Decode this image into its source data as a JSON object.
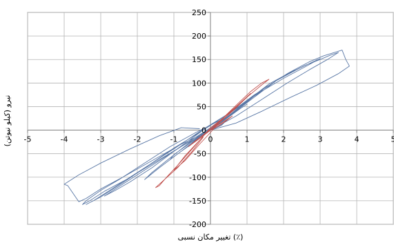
{
  "chart_data": {
    "type": "line",
    "title": "",
    "xlabel": "تغییر مکان نسبی (٪)",
    "ylabel": "نیرو (کیلو نیوتن)",
    "xlim": [
      -5,
      5
    ],
    "ylim": [
      -200,
      250
    ],
    "x_ticks": [
      -5,
      -4,
      -3,
      -2,
      -1,
      0,
      1,
      2,
      3,
      4,
      5
    ],
    "y_ticks": [
      -200,
      -150,
      -100,
      -50,
      0,
      50,
      100,
      150,
      200,
      250
    ],
    "grid": true,
    "series": [
      {
        "color": "#5a78a6",
        "points": [
          [
            0,
            0
          ],
          [
            0.3,
            10
          ],
          [
            0.5,
            25
          ],
          [
            0.3,
            12
          ],
          [
            0,
            0
          ],
          [
            -0.3,
            -14
          ],
          [
            -0.5,
            -28
          ],
          [
            -0.3,
            -15
          ],
          [
            0,
            0
          ],
          [
            0.4,
            22
          ],
          [
            0.8,
            45
          ],
          [
            1.0,
            55
          ],
          [
            0.6,
            35
          ],
          [
            0.2,
            12
          ],
          [
            -0.2,
            -8
          ],
          [
            -0.6,
            -30
          ],
          [
            -1.0,
            -52
          ],
          [
            -1.1,
            -62
          ],
          [
            -0.8,
            -45
          ],
          [
            -0.3,
            -18
          ],
          [
            0,
            0
          ],
          [
            0.5,
            28
          ],
          [
            1.0,
            60
          ],
          [
            1.4,
            85
          ],
          [
            1.6,
            98
          ],
          [
            1.2,
            70
          ],
          [
            0.6,
            35
          ],
          [
            0,
            5
          ],
          [
            -0.6,
            -28
          ],
          [
            -1.2,
            -65
          ],
          [
            -1.6,
            -90
          ],
          [
            -1.8,
            -105
          ],
          [
            -1.4,
            -80
          ],
          [
            -0.8,
            -45
          ],
          [
            -0.2,
            -8
          ],
          [
            0.4,
            25
          ],
          [
            1.0,
            62
          ],
          [
            1.6,
            98
          ],
          [
            2.0,
            115
          ],
          [
            2.3,
            128
          ],
          [
            1.8,
            105
          ],
          [
            1.2,
            75
          ],
          [
            0.5,
            35
          ],
          [
            -0.2,
            0
          ],
          [
            -1.0,
            -45
          ],
          [
            -1.6,
            -80
          ],
          [
            -2.2,
            -110
          ],
          [
            -2.6,
            -128
          ],
          [
            -2.9,
            -140
          ],
          [
            -2.5,
            -120
          ],
          [
            -1.8,
            -85
          ],
          [
            -1.0,
            -45
          ],
          [
            -0.3,
            -10
          ],
          [
            0.5,
            30
          ],
          [
            1.2,
            70
          ],
          [
            1.8,
            105
          ],
          [
            2.4,
            130
          ],
          [
            2.8,
            145
          ],
          [
            3.0,
            152
          ],
          [
            2.6,
            135
          ],
          [
            2.0,
            110
          ],
          [
            1.3,
            78
          ],
          [
            0.6,
            40
          ],
          [
            -0.2,
            2
          ],
          [
            -1.0,
            -40
          ],
          [
            -1.8,
            -80
          ],
          [
            -2.4,
            -110
          ],
          [
            -2.9,
            -135
          ],
          [
            -3.2,
            -150
          ],
          [
            -3.4,
            -158
          ],
          [
            -3.0,
            -142
          ],
          [
            -2.4,
            -112
          ],
          [
            -1.7,
            -75
          ],
          [
            -1.0,
            -38
          ],
          [
            -0.3,
            -5
          ],
          [
            0.6,
            40
          ],
          [
            1.4,
            85
          ],
          [
            2.0,
            115
          ],
          [
            2.6,
            138
          ],
          [
            3.0,
            150
          ],
          [
            3.3,
            160
          ],
          [
            3.5,
            165
          ],
          [
            3.2,
            150
          ],
          [
            2.7,
            128
          ],
          [
            2.1,
            100
          ],
          [
            1.4,
            65
          ],
          [
            0.7,
            30
          ],
          [
            0,
            0
          ],
          [
            -0.8,
            -35
          ],
          [
            -1.6,
            -72
          ],
          [
            -2.3,
            -105
          ],
          [
            -2.9,
            -130
          ],
          [
            -3.3,
            -150
          ],
          [
            -3.5,
            -158
          ],
          [
            -3.4,
            -150
          ],
          [
            -3.0,
            -128
          ],
          [
            -2.5,
            -105
          ],
          [
            -1.8,
            -70
          ],
          [
            -1.1,
            -35
          ],
          [
            -0.4,
            -5
          ],
          [
            0.5,
            30
          ],
          [
            1.3,
            80
          ],
          [
            2.1,
            120
          ],
          [
            2.7,
            145
          ],
          [
            3.1,
            158
          ],
          [
            3.6,
            170
          ],
          [
            3.7,
            150
          ],
          [
            3.8,
            136
          ],
          [
            3.5,
            120
          ],
          [
            2.9,
            95
          ],
          [
            2.2,
            70
          ],
          [
            1.4,
            40
          ],
          [
            0.7,
            15
          ],
          [
            0,
            0
          ],
          [
            -0.8,
            -30
          ],
          [
            -1.6,
            -65
          ],
          [
            -2.4,
            -100
          ],
          [
            -3.0,
            -125
          ],
          [
            -3.4,
            -145
          ],
          [
            -3.6,
            -152
          ],
          [
            -3.9,
            -118
          ],
          [
            -4.0,
            -115
          ],
          [
            -3.6,
            -95
          ],
          [
            -3.0,
            -70
          ],
          [
            -2.2,
            -40
          ],
          [
            -1.4,
            -12
          ],
          [
            -0.8,
            5
          ],
          [
            -0.3,
            3
          ]
        ]
      },
      {
        "color": "#c0504d",
        "points": [
          [
            0,
            0
          ],
          [
            0.2,
            8
          ],
          [
            0.4,
            18
          ],
          [
            0.6,
            30
          ],
          [
            0.3,
            15
          ],
          [
            0,
            2
          ],
          [
            -0.2,
            -10
          ],
          [
            -0.4,
            -22
          ],
          [
            -0.6,
            -35
          ],
          [
            -0.3,
            -18
          ],
          [
            0,
            0
          ],
          [
            0.3,
            20
          ],
          [
            0.6,
            40
          ],
          [
            0.8,
            55
          ],
          [
            1.0,
            70
          ],
          [
            1.1,
            78
          ],
          [
            0.7,
            50
          ],
          [
            0.3,
            22
          ],
          [
            -0.1,
            -5
          ],
          [
            -0.4,
            -30
          ],
          [
            -0.7,
            -55
          ],
          [
            -0.9,
            -75
          ],
          [
            -1.0,
            -85
          ],
          [
            -0.7,
            -65
          ],
          [
            -0.3,
            -30
          ],
          [
            0,
            -5
          ],
          [
            0.4,
            30
          ],
          [
            0.8,
            60
          ],
          [
            1.1,
            82
          ],
          [
            1.4,
            100
          ],
          [
            1.6,
            108
          ],
          [
            1.4,
            96
          ],
          [
            1.0,
            70
          ],
          [
            0.5,
            35
          ],
          [
            0,
            5
          ],
          [
            -0.5,
            -40
          ],
          [
            -0.9,
            -75
          ],
          [
            -1.2,
            -100
          ],
          [
            -1.4,
            -118
          ],
          [
            -1.5,
            -122
          ],
          [
            -1.3,
            -108
          ],
          [
            -0.9,
            -80
          ],
          [
            -0.5,
            -45
          ],
          [
            -0.2,
            -15
          ]
        ]
      }
    ]
  }
}
